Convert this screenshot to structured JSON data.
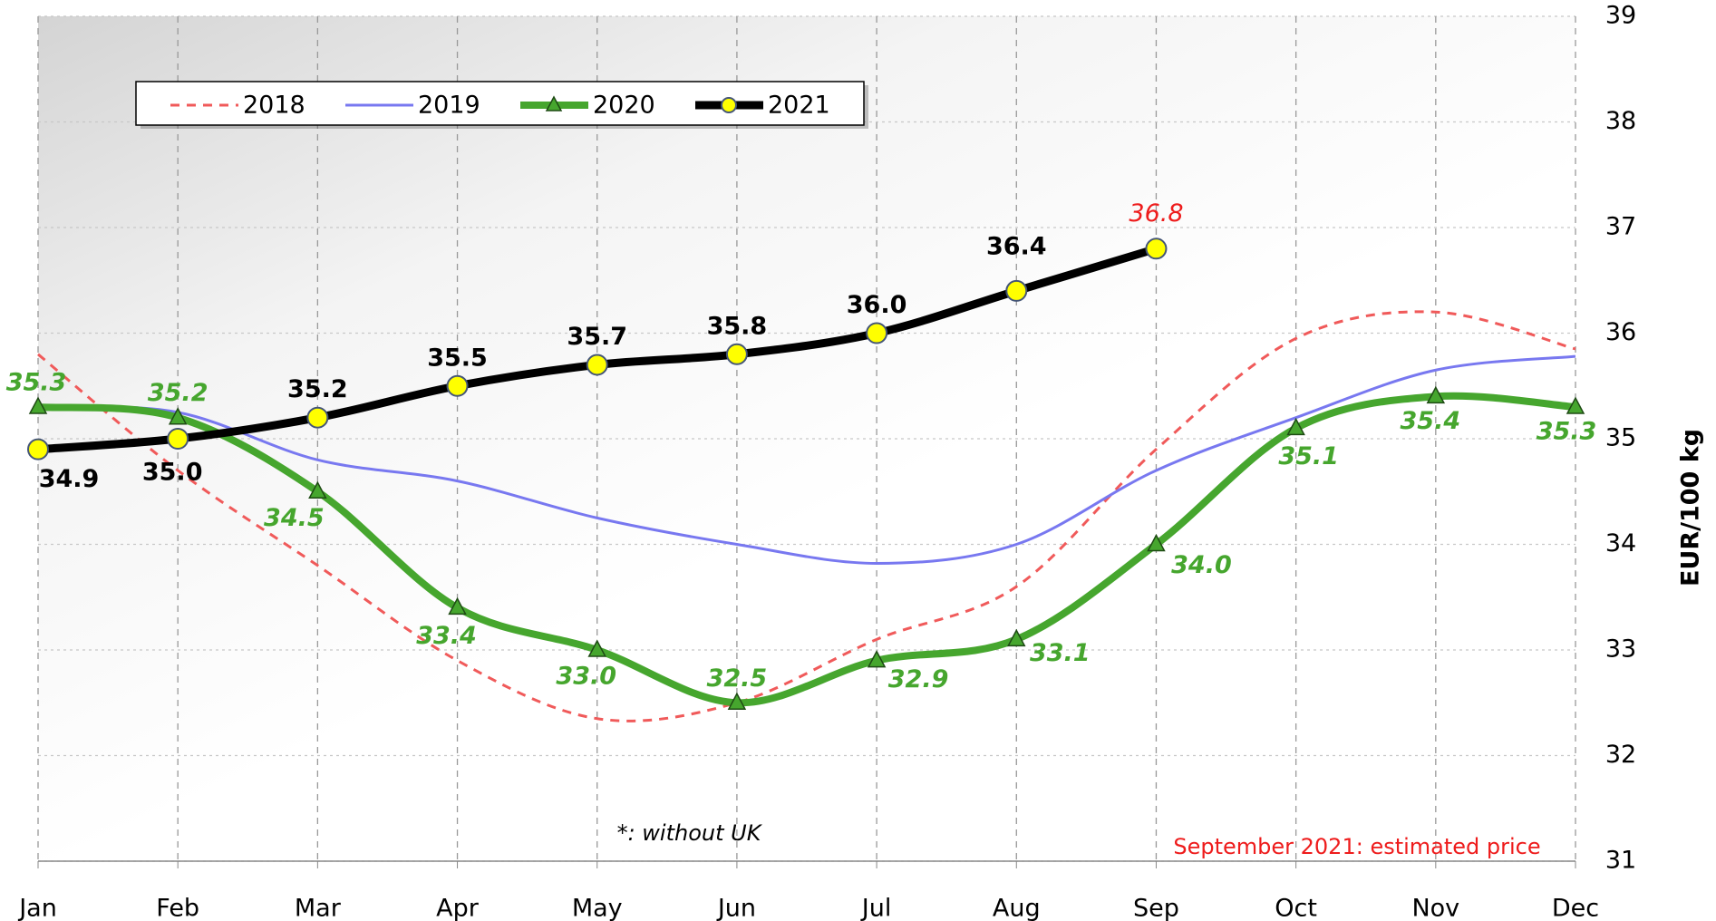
{
  "chart_data": {
    "type": "line",
    "categories": [
      "Jan",
      "Feb",
      "Mar",
      "Apr",
      "May",
      "Jun",
      "Jul",
      "Aug",
      "Sep",
      "Oct",
      "Nov",
      "Dec"
    ],
    "series": [
      {
        "name": "2018",
        "color": "#f05a5a",
        "dashed": true,
        "values": [
          35.8,
          34.7,
          33.8,
          32.9,
          32.35,
          32.5,
          33.1,
          33.6,
          34.9,
          35.95,
          36.2,
          35.85
        ]
      },
      {
        "name": "2019",
        "color": "#7878f0",
        "values": [
          35.3,
          35.25,
          34.8,
          34.6,
          34.25,
          34.0,
          33.82,
          34.0,
          34.7,
          35.2,
          35.65,
          35.78
        ]
      },
      {
        "name": "2020",
        "color": "#46a62e",
        "marker": "triangle",
        "values": [
          35.3,
          35.2,
          34.5,
          33.4,
          33.0,
          32.5,
          32.9,
          33.1,
          34.0,
          35.1,
          35.4,
          35.3
        ],
        "value_labels": [
          "35.3",
          "35.2",
          "34.5",
          "33.4",
          "33.0",
          "32.5",
          "32.9",
          "33.1",
          "34.0",
          "35.1",
          "35.4",
          "35.3"
        ]
      },
      {
        "name": "2021",
        "color": "#000000",
        "marker": "circle",
        "values": [
          34.9,
          35.0,
          35.2,
          35.5,
          35.7,
          35.8,
          36.0,
          36.4,
          36.8,
          null,
          null,
          null
        ],
        "value_labels": [
          "34.9",
          "35.0",
          "35.2",
          "35.5",
          "35.7",
          "35.8",
          "36.0",
          "36.4",
          "36.8",
          null,
          null,
          null
        ]
      }
    ],
    "ylim": [
      31,
      39
    ],
    "yticks": [
      31,
      32,
      33,
      34,
      35,
      36,
      37,
      38,
      39
    ],
    "y_axis_label": "EUR/100 kg",
    "y_axis_side": "right",
    "grid": true,
    "annotations": [
      "*: without UK",
      "September 2021: estimated price"
    ]
  }
}
